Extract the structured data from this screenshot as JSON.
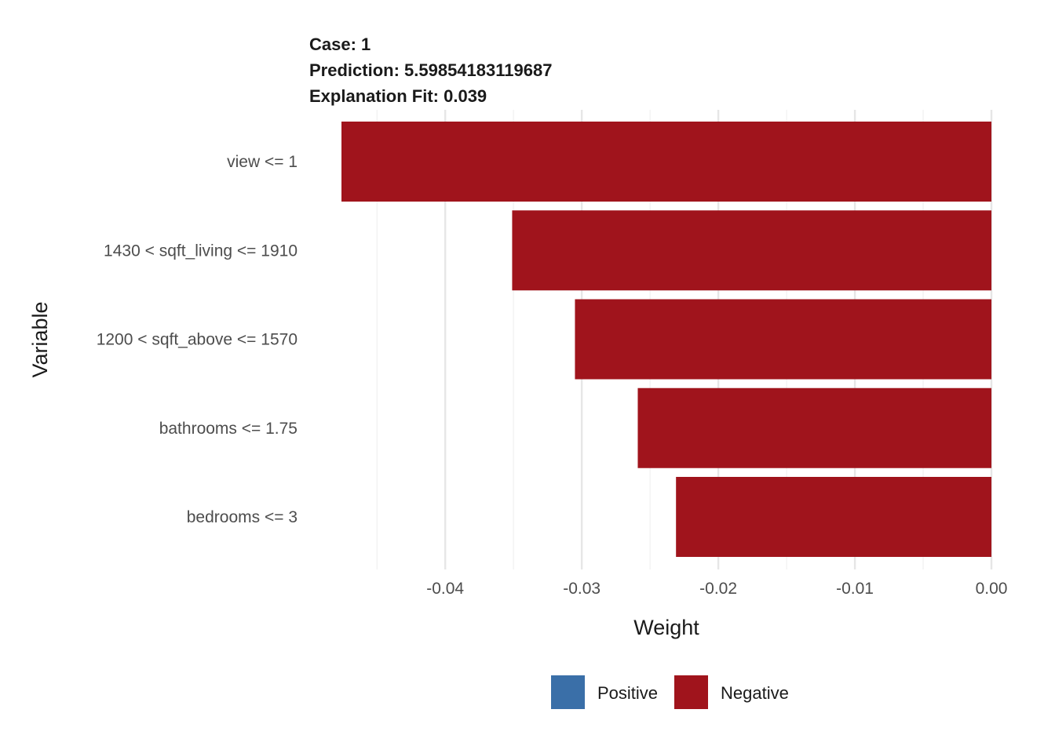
{
  "chart_data": {
    "type": "bar",
    "orientation": "horizontal",
    "header": {
      "case": "Case: 1",
      "prediction": "Prediction: 5.59854183119687",
      "fit": "Explanation Fit: 0.039"
    },
    "categories": [
      "view <= 1",
      "1430 < sqft_living <= 1910",
      "1200 < sqft_above <= 1570",
      "bathrooms <= 1.75",
      "bedrooms <= 3"
    ],
    "values": [
      -0.0476,
      -0.0351,
      -0.0305,
      -0.0259,
      -0.0231
    ],
    "signs": [
      "Negative",
      "Negative",
      "Negative",
      "Negative",
      "Negative"
    ],
    "xlabel": "Weight",
    "ylabel": "Variable",
    "xlim": [
      -0.0476,
      0.0
    ],
    "xticks": [
      -0.04,
      -0.03,
      -0.02,
      -0.01,
      0.0
    ],
    "xtick_labels": [
      "-0.04",
      "-0.03",
      "-0.02",
      "-0.01",
      "0.00"
    ],
    "grid": true,
    "legend_position": "bottom",
    "legend": [
      {
        "key": "Positive",
        "label": "Positive",
        "color": "#3a6fa8"
      },
      {
        "key": "Negative",
        "label": "Negative",
        "color": "#a0141c"
      }
    ]
  }
}
